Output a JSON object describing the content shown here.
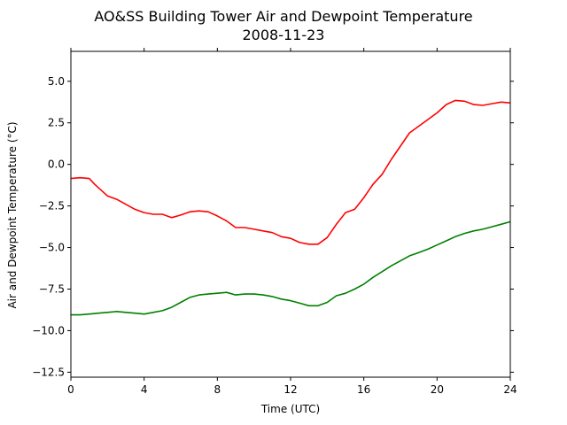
{
  "chart_data": {
    "type": "line",
    "title": "AO&SS Building Tower Air and Dewpoint Temperature",
    "subtitle": "2008-11-23",
    "xlabel": "Time (UTC)",
    "ylabel": "Air and Dewpoint Temperature (°C)",
    "xlim": [
      0,
      24
    ],
    "ylim": [
      -12.8,
      6.8
    ],
    "xticks": [
      0,
      4,
      8,
      12,
      16,
      20,
      24
    ],
    "xtick_labels": [
      "0",
      "4",
      "8",
      "12",
      "16",
      "20",
      "24"
    ],
    "yticks": [
      5.0,
      2.5,
      0.0,
      -2.5,
      -5.0,
      -7.5,
      -10.0,
      -12.5
    ],
    "ytick_labels": [
      "5.0",
      "2.5",
      "0.0",
      "−2.5",
      "−5.0",
      "−7.5",
      "−10.0",
      "−12.5"
    ],
    "grid": false,
    "series": [
      {
        "color": "#ff0000",
        "x": [
          0,
          0.5,
          1,
          1.3,
          1.6,
          2,
          2.5,
          3,
          3.5,
          4,
          4.5,
          5,
          5.5,
          6,
          6.5,
          7,
          7.5,
          8,
          8.5,
          9,
          9.5,
          10,
          10.5,
          11,
          11.5,
          12,
          12.5,
          13,
          13.5,
          14,
          14.5,
          15,
          15.5,
          16,
          16.5,
          17,
          17.5,
          18,
          18.5,
          19,
          19.5,
          20,
          20.5,
          21,
          21.5,
          22,
          22.5,
          23,
          23.5,
          24
        ],
        "y": [
          -0.85,
          -0.8,
          -0.85,
          -1.2,
          -1.5,
          -1.9,
          -2.1,
          -2.4,
          -2.7,
          -2.9,
          -3.0,
          -3.0,
          -3.2,
          -3.05,
          -2.85,
          -2.8,
          -2.85,
          -3.1,
          -3.4,
          -3.8,
          -3.8,
          -3.9,
          -4.0,
          -4.1,
          -4.35,
          -4.45,
          -4.7,
          -4.8,
          -4.8,
          -4.4,
          -3.6,
          -2.9,
          -2.7,
          -2.0,
          -1.2,
          -0.6,
          0.3,
          1.1,
          1.9,
          2.3,
          2.7,
          3.1,
          3.6,
          3.85,
          3.8,
          3.6,
          3.55,
          3.65,
          3.75,
          3.7
        ]
      },
      {
        "color": "#008000",
        "x": [
          0,
          0.5,
          1,
          1.5,
          2,
          2.5,
          3,
          3.5,
          4,
          4.5,
          5,
          5.5,
          6,
          6.5,
          7,
          7.5,
          8,
          8.5,
          9,
          9.5,
          10,
          10.5,
          11,
          11.5,
          12,
          12.5,
          13,
          13.5,
          14,
          14.5,
          15,
          15.5,
          16,
          16.5,
          17,
          17.5,
          18,
          18.5,
          19,
          19.5,
          20,
          20.5,
          21,
          21.5,
          22,
          22.5,
          23,
          23.5,
          24
        ],
        "y": [
          -9.05,
          -9.05,
          -9.0,
          -8.95,
          -8.9,
          -8.85,
          -8.9,
          -8.95,
          -9.0,
          -8.9,
          -8.8,
          -8.6,
          -8.3,
          -8.0,
          -7.85,
          -7.8,
          -7.75,
          -7.7,
          -7.85,
          -7.8,
          -7.8,
          -7.85,
          -7.95,
          -8.1,
          -8.2,
          -8.35,
          -8.5,
          -8.5,
          -8.3,
          -7.9,
          -7.75,
          -7.5,
          -7.2,
          -6.8,
          -6.45,
          -6.1,
          -5.8,
          -5.5,
          -5.3,
          -5.1,
          -4.85,
          -4.6,
          -4.35,
          -4.15,
          -4.0,
          -3.9,
          -3.75,
          -3.6,
          -3.45
        ]
      }
    ]
  }
}
